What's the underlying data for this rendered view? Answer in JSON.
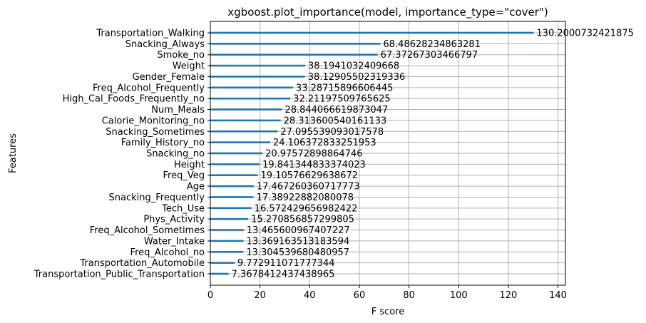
{
  "chart_data": {
    "type": "bar",
    "orientation": "horizontal",
    "title": "xgboost.plot_importance(model, importance_type=\"cover\")",
    "xlabel": "F score",
    "ylabel": "Features",
    "xlim": [
      0,
      143
    ],
    "xticks": [
      0,
      20,
      40,
      60,
      80,
      100,
      120,
      140
    ],
    "grid": true,
    "bar_color": "#1f77b4",
    "categories": [
      "Transportation_Walking",
      "Snacking_Always",
      "Smoke_no",
      "Weight",
      "Gender_Female",
      "Freq_Alcohol_Frequently",
      "High_Cal_Foods_Frequently_no",
      "Num_Meals",
      "Calorie_Monitoring_no",
      "Snacking_Sometimes",
      "Family_History_no",
      "Snacking_no",
      "Height",
      "Freq_Veg",
      "Age",
      "Snacking_Frequently",
      "Tech_Use",
      "Phys_Activity",
      "Freq_Alcohol_Sometimes",
      "Water_Intake",
      "Freq_Alcohol_no",
      "Transportation_Automobile",
      "Transportation_Public_Transportation"
    ],
    "values": [
      130.2000732421875,
      68.48628234863281,
      67.37267303466797,
      38.1941032409668,
      38.12905502319336,
      33.28715896606445,
      32.21197509765625,
      28.844066619873047,
      28.313600540161133,
      27.095539093017578,
      24.106372833251953,
      20.97572898864746,
      19.841344833374023,
      19.10576629638672,
      17.467260360717773,
      17.38922882080078,
      16.572429656982422,
      15.270856857299805,
      13.465600967407227,
      13.369163513183594,
      13.304539680480957,
      9.772911071777344,
      7.3678412437438965
    ],
    "value_labels": [
      "130.2000732421875",
      "68.48628234863281",
      "67.37267303466797",
      "38.1941032409668",
      "38.12905502319336",
      "33.28715896606445",
      "32.21197509765625",
      "28.844066619873047",
      "28.313600540161133",
      "27.095539093017578",
      "24.106372833251953",
      "20.97572898864746",
      "19.841344833374023",
      "19.10576629638672",
      "17.467260360717773",
      "17.38922882080078",
      "16.572429656982422",
      "15.270856857299805",
      "13.465600967407227",
      "13.369163513183594",
      "13.304539680480957",
      "9.772911071777344",
      "7.3678412437438965"
    ]
  }
}
